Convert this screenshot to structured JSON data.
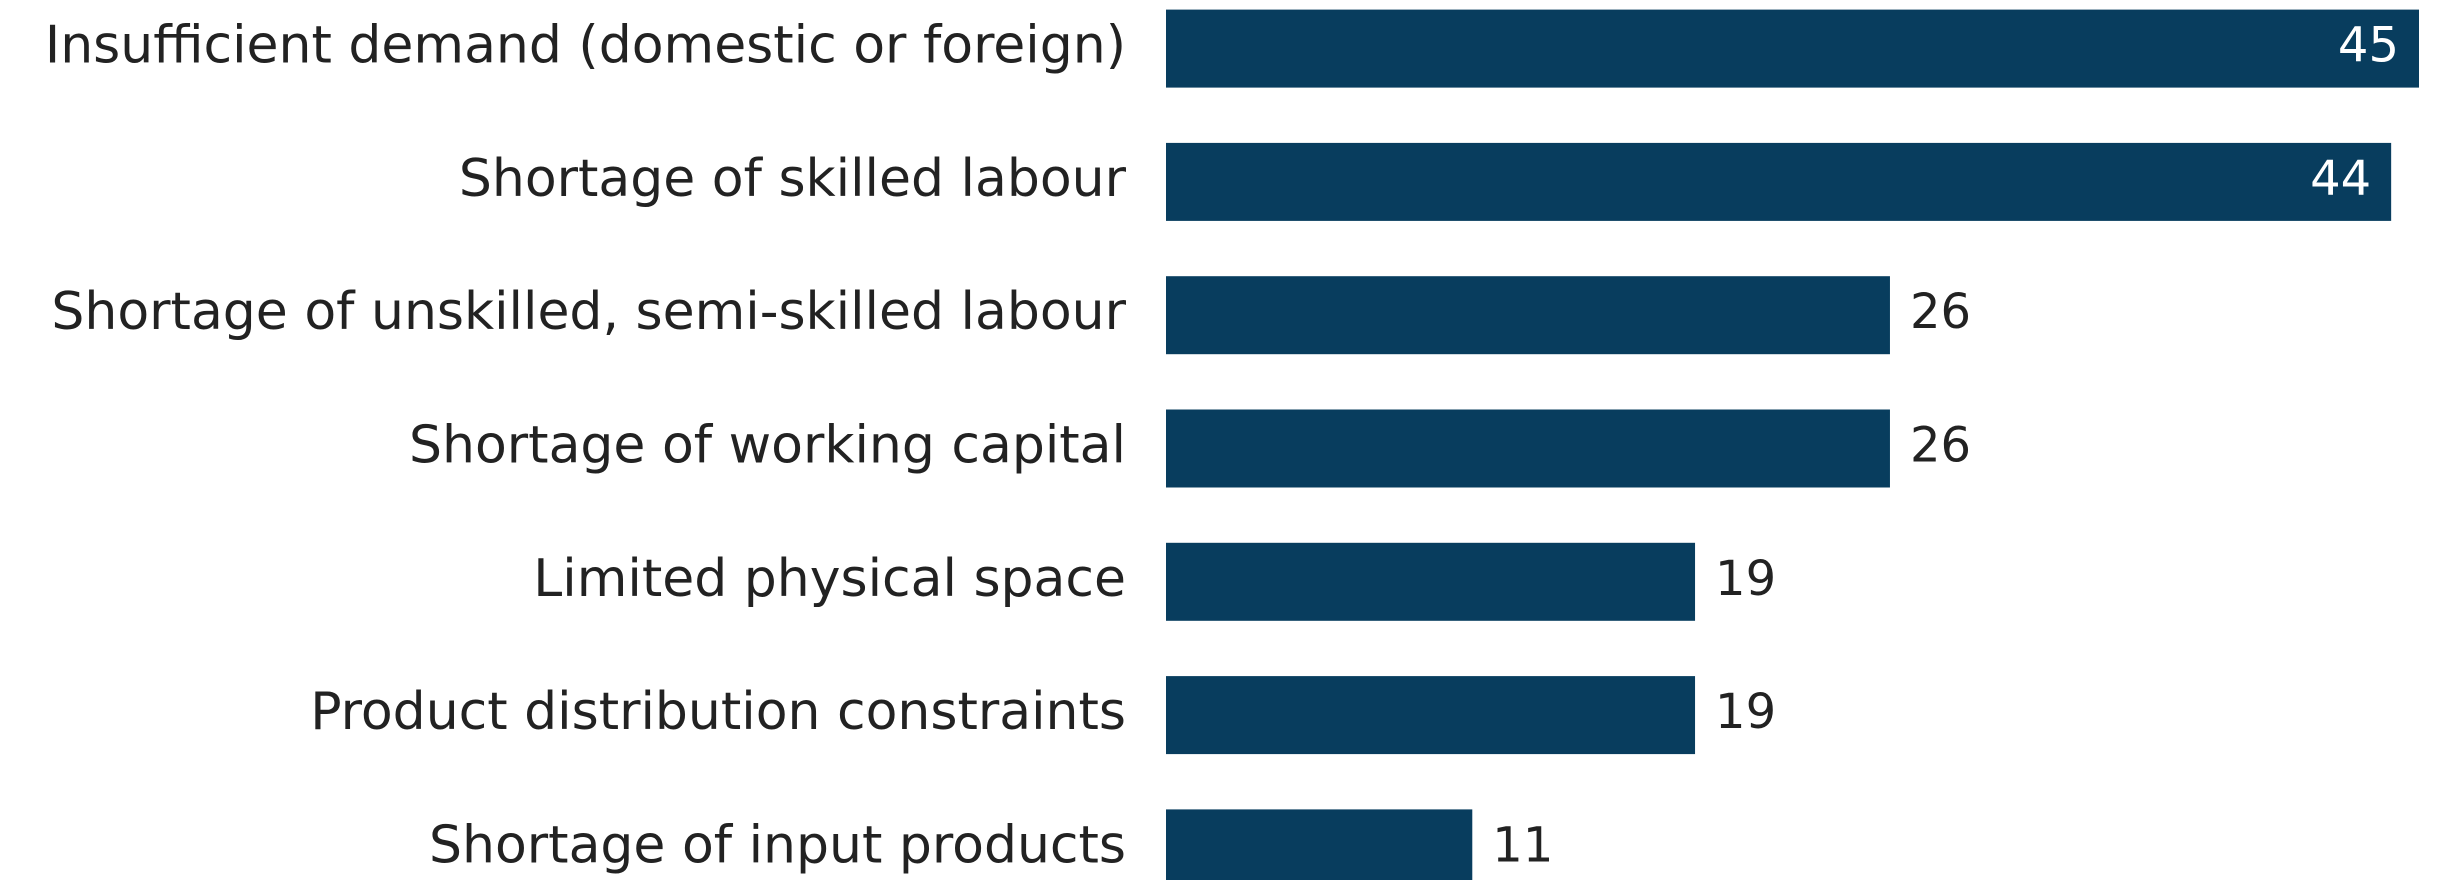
{
  "chart_data": {
    "type": "bar",
    "orientation": "horizontal",
    "categories": [
      "Insufficient demand (domestic or foreign)",
      "Shortage of skilled labour",
      "Shortage of unskilled, semi-skilled labour",
      "Shortage of working capital",
      "Limited physical space",
      "Product distribution constraints",
      "Shortage of input products"
    ],
    "values": [
      45,
      44,
      26,
      26,
      19,
      19,
      11
    ],
    "color": "#083d5e"
  }
}
